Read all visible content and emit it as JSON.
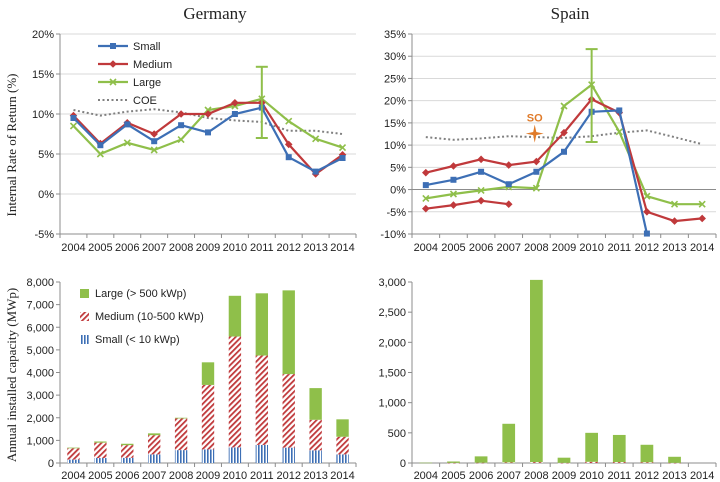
{
  "panel_titles": {
    "germany": "Germany",
    "spain": "Spain"
  },
  "axis_labels": {
    "irr": "Internal Rate of Return (%)",
    "capacity": "Annual installed capacity (MWp)"
  },
  "colors": {
    "small": "#3d6fb5",
    "medium": "#c0393b",
    "large": "#8fbf4a",
    "coe": "#808080",
    "so": "#e07b2a",
    "grid": "#d9d9d9",
    "axis": "#8c8c8c"
  },
  "chart_data": [
    {
      "id": "germany-irr",
      "type": "line",
      "title": "Germany",
      "ylabel": "Internal Rate of Return (%)",
      "x": [
        "2004",
        "2005",
        "2006",
        "2007",
        "2008",
        "2009",
        "2010",
        "2011",
        "2012",
        "2013",
        "2014"
      ],
      "ylim": [
        -5,
        20
      ],
      "yticks": [
        "-5%",
        "0%",
        "5%",
        "10%",
        "15%",
        "20%"
      ],
      "ytick_values": [
        -5,
        0,
        5,
        10,
        15,
        20
      ],
      "grid": true,
      "legend": "top-left",
      "series": [
        {
          "name": "Small",
          "key": "small",
          "values": [
            9.5,
            6.1,
            8.7,
            6.6,
            8.6,
            7.7,
            10.0,
            10.8,
            4.6,
            2.8,
            4.5
          ]
        },
        {
          "name": "Medium",
          "key": "medium",
          "values": [
            9.8,
            6.3,
            8.9,
            7.5,
            10.0,
            10.0,
            11.4,
            11.4,
            6.2,
            2.5,
            4.9
          ]
        },
        {
          "name": "Large",
          "key": "large",
          "values": [
            8.5,
            5.0,
            6.4,
            5.5,
            6.8,
            10.5,
            11.0,
            11.9,
            9.1,
            6.9,
            5.8
          ]
        },
        {
          "name": "COE",
          "key": "coe",
          "values": [
            10.5,
            9.8,
            10.3,
            10.6,
            10.2,
            9.5,
            9.2,
            9.0,
            7.9,
            7.9,
            7.5
          ]
        }
      ],
      "error_bars": [
        {
          "x": "2011",
          "low": 7.0,
          "high": 15.9
        }
      ]
    },
    {
      "id": "spain-irr",
      "type": "line",
      "title": "Spain",
      "x": [
        "2004",
        "2005",
        "2006",
        "2007",
        "2008",
        "2009",
        "2010",
        "2011",
        "2012",
        "2013",
        "2014"
      ],
      "ylim": [
        -10,
        35
      ],
      "yticks": [
        "-10%",
        "-5%",
        "0%",
        "5%",
        "10%",
        "15%",
        "20%",
        "25%",
        "30%",
        "35%"
      ],
      "ytick_values": [
        -10,
        -5,
        0,
        5,
        10,
        15,
        20,
        25,
        30,
        35
      ],
      "grid": true,
      "series": [
        {
          "key": "small",
          "values": [
            1.0,
            2.2,
            4.0,
            1.2,
            4.0,
            8.5,
            17.5,
            17.8,
            -9.9,
            null,
            null
          ]
        },
        {
          "key": "medium",
          "values": [
            3.8,
            5.3,
            6.8,
            5.5,
            6.3,
            12.8,
            20.3,
            17.3,
            -5.0,
            -7.1,
            -6.5
          ]
        },
        {
          "key": "large",
          "values": [
            -2.0,
            -1.0,
            -0.2,
            0.6,
            0.3,
            18.8,
            23.6,
            13.0,
            -1.5,
            -3.3,
            -3.3
          ]
        },
        {
          "key": "coe",
          "values": [
            11.8,
            11.2,
            11.5,
            12.0,
            11.8,
            11.6,
            12.0,
            12.8,
            13.3,
            11.8,
            10.2
          ]
        },
        {
          "key": "medium-low",
          "values": [
            -4.3,
            -3.5,
            -2.5,
            -3.3,
            null,
            null,
            null,
            null,
            null,
            null,
            null
          ]
        }
      ],
      "error_bars": [
        {
          "x": "2010",
          "low": 10.7,
          "high": 31.6
        }
      ],
      "annotations": [
        {
          "text": "SO",
          "x": "2007",
          "y": 13.5
        }
      ]
    },
    {
      "id": "germany-capacity",
      "type": "bar",
      "stacked": true,
      "ylabel": "Annual installed capacity (MWp)",
      "categories": [
        "2004",
        "2005",
        "2006",
        "2007",
        "2008",
        "2009",
        "2010",
        "2011",
        "2012",
        "2013",
        "2014"
      ],
      "ylim": [
        0,
        8000
      ],
      "yticks": [
        "0",
        "1,000",
        "2,000",
        "3,000",
        "4,000",
        "5,000",
        "6,000",
        "7,000",
        "8,000"
      ],
      "ytick_values": [
        0,
        1000,
        2000,
        3000,
        4000,
        5000,
        6000,
        7000,
        8000
      ],
      "legend": "top-left",
      "series": [
        {
          "name": "Small (< 10 kWp)",
          "key": "small",
          "values": [
            150,
            220,
            230,
            380,
            570,
            600,
            690,
            800,
            680,
            560,
            380
          ]
        },
        {
          "name": "Medium (10-500 kWp)",
          "key": "medium",
          "values": [
            500,
            680,
            560,
            850,
            1400,
            2850,
            4900,
            3950,
            3250,
            1350,
            780
          ]
        },
        {
          "name": "Large (> 500 kWp)",
          "key": "large",
          "values": [
            30,
            50,
            60,
            80,
            30,
            1000,
            1800,
            2750,
            3700,
            1400,
            770
          ]
        }
      ]
    },
    {
      "id": "spain-capacity",
      "type": "bar",
      "stacked": true,
      "categories": [
        "2004",
        "2005",
        "2006",
        "2007",
        "2008",
        "2009",
        "2010",
        "2011",
        "2012",
        "2013",
        "2014"
      ],
      "ylim": [
        0,
        3000
      ],
      "yticks": [
        "0",
        "500",
        "1,000",
        "1,500",
        "2,000",
        "2,500",
        "3,000"
      ],
      "ytick_values": [
        0,
        500,
        1000,
        1500,
        2000,
        2500,
        3000
      ],
      "series": [
        {
          "key": "medium",
          "values": [
            0,
            3,
            5,
            10,
            15,
            3,
            20,
            15,
            12,
            3,
            0
          ]
        },
        {
          "key": "large",
          "values": [
            5,
            22,
            105,
            640,
            3020,
            85,
            480,
            450,
            290,
            100,
            0
          ]
        }
      ]
    }
  ]
}
